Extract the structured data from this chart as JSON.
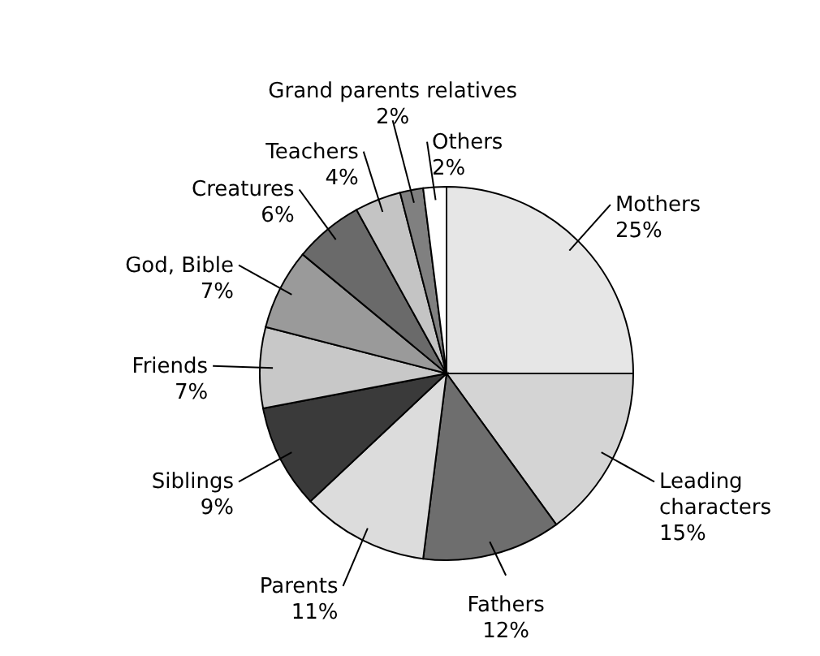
{
  "chart_data": {
    "type": "pie",
    "categories": [
      "Mothers",
      "Leading characters",
      "Fathers",
      "Parents",
      "Siblings",
      "Friends",
      "God, Bible",
      "Creatures",
      "Teachers",
      "Grand parents relatives",
      "Others"
    ],
    "values": [
      25,
      15,
      12,
      11,
      9,
      7,
      7,
      6,
      4,
      2,
      2
    ],
    "value_labels": [
      "25%",
      "15%",
      "12%",
      "11%",
      "9%",
      "7%",
      "7%",
      "6%",
      "4%",
      "2%",
      "2%"
    ],
    "colors": [
      "#e6e6e6",
      "#d4d4d4",
      "#6e6e6e",
      "#dcdcdc",
      "#3a3a3a",
      "#c8c8c8",
      "#9a9a9a",
      "#6a6a6a",
      "#c4c4c4",
      "#808080",
      "#ffffff"
    ],
    "legend": false
  }
}
